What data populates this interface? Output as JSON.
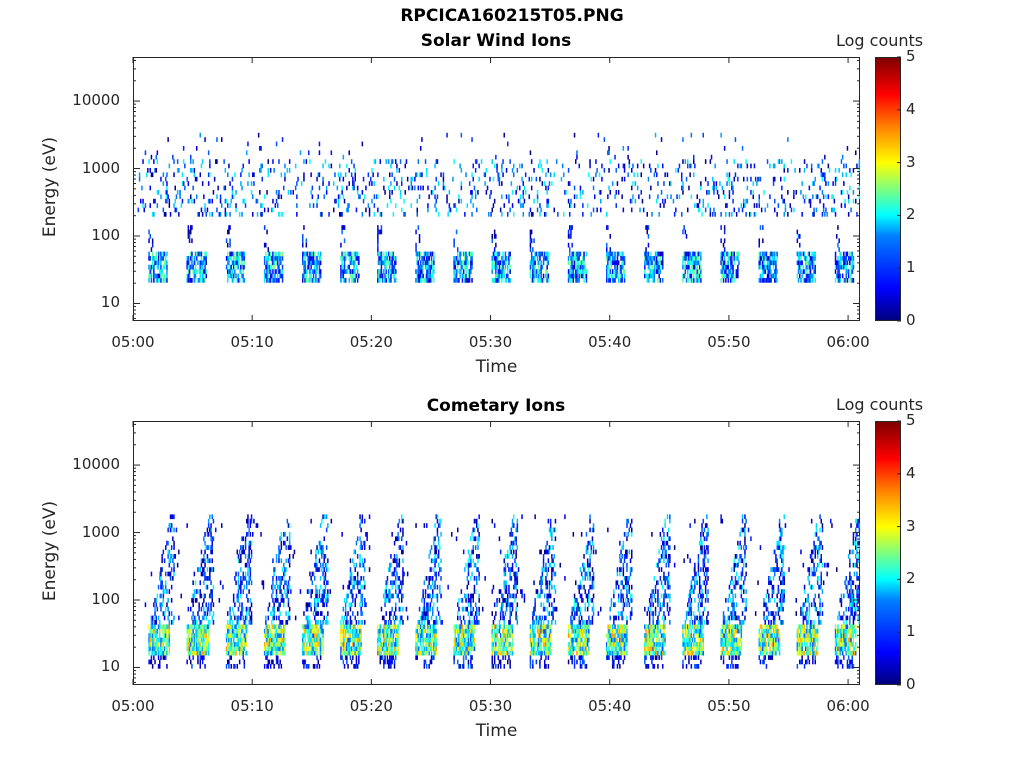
{
  "figure": {
    "title": "RPCICA160215T05.PNG",
    "colorbar_ticks": [
      "0",
      "1",
      "2",
      "3",
      "4",
      "5"
    ]
  },
  "chart_data": [
    {
      "type": "heatmap",
      "title": "Solar Wind Ions",
      "xlabel": "Time",
      "ylabel": "Energy (eV)",
      "colorbar_label": "Log counts",
      "x_range": [
        "05:00",
        "06:01"
      ],
      "x_ticks": [
        "05:00",
        "05:10",
        "05:20",
        "05:30",
        "05:40",
        "05:50",
        "06:00"
      ],
      "y_scale": "log",
      "y_range": [
        5.5,
        45000
      ],
      "y_ticks": [
        "10",
        "100",
        "1000",
        "10000"
      ],
      "color_range": [
        0,
        5
      ],
      "colormap": "jet",
      "features": {
        "low_band_ev": [
          20,
          60
        ],
        "low_band_peak_log_counts": 2.2,
        "high_band_ev": [
          200,
          1500
        ],
        "high_band_peak_log_counts": 2.0,
        "burst_period_min": 3.2
      }
    },
    {
      "type": "heatmap",
      "title": "Cometary Ions",
      "xlabel": "Time",
      "ylabel": "Energy (eV)",
      "colorbar_label": "Log counts",
      "x_range": [
        "05:00",
        "06:01"
      ],
      "x_ticks": [
        "05:00",
        "05:10",
        "05:20",
        "05:30",
        "05:40",
        "05:50",
        "06:00"
      ],
      "y_scale": "log",
      "y_range": [
        5.5,
        45000
      ],
      "y_ticks": [
        "10",
        "100",
        "1000",
        "10000"
      ],
      "color_range": [
        0,
        5
      ],
      "colormap": "jet",
      "features": {
        "low_band_ev": [
          15,
          45
        ],
        "low_band_peak_log_counts": 3.3,
        "dispersion_upper_ev": 2000,
        "burst_period_min": 3.2
      }
    }
  ]
}
